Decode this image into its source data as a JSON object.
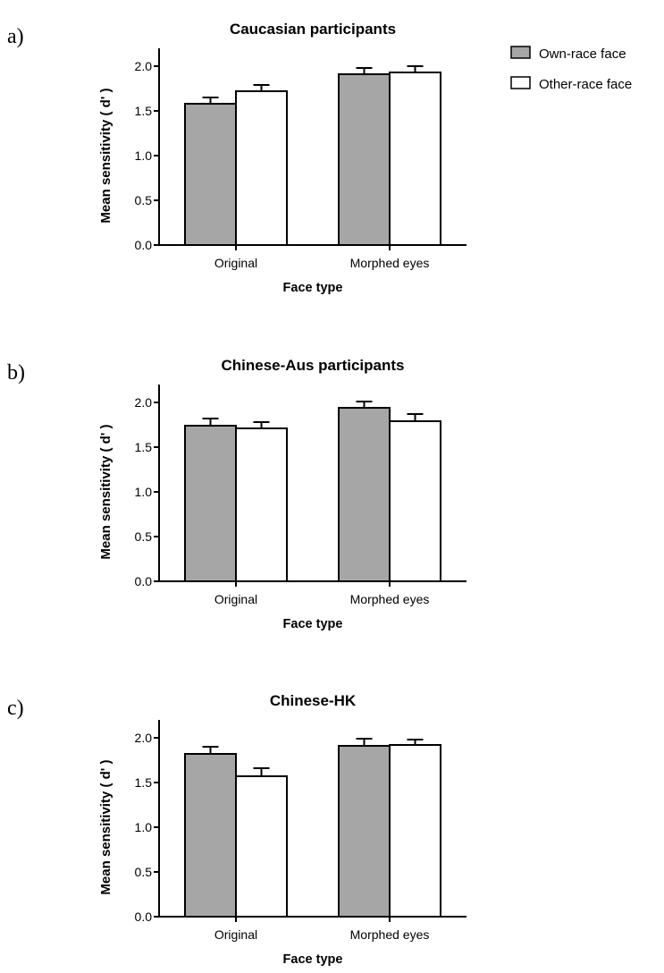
{
  "legend": {
    "position": "top-right",
    "items": [
      {
        "label": "Own-race face",
        "color": "#a6a6a6"
      },
      {
        "label": "Other-race face",
        "color": "#ffffff"
      }
    ]
  },
  "chart_data": [
    {
      "panel": "a)",
      "type": "bar",
      "title": "Caucasian participants",
      "xlabel": "Face type",
      "ylabel": "Mean sensitivity ( d' )",
      "categories": [
        "Original",
        "Morphed eyes"
      ],
      "ylim": [
        0,
        2.2
      ],
      "yticks": [
        "0.0",
        "0.5",
        "1.0",
        "1.5",
        "2.0"
      ],
      "grid": false,
      "series": [
        {
          "name": "Own-race face",
          "values": [
            1.58,
            1.91
          ],
          "errors": [
            0.07,
            0.07
          ]
        },
        {
          "name": "Other-race face",
          "values": [
            1.72,
            1.93
          ],
          "errors": [
            0.07,
            0.07
          ]
        }
      ]
    },
    {
      "panel": "b)",
      "type": "bar",
      "title": "Chinese-Aus participants",
      "xlabel": "Face type",
      "ylabel": "Mean sensitivity ( d' )",
      "categories": [
        "Original",
        "Morphed eyes"
      ],
      "ylim": [
        0,
        2.2
      ],
      "yticks": [
        "0.0",
        "0.5",
        "1.0",
        "1.5",
        "2.0"
      ],
      "grid": false,
      "series": [
        {
          "name": "Own-race face",
          "values": [
            1.74,
            1.94
          ],
          "errors": [
            0.08,
            0.07
          ]
        },
        {
          "name": "Other-race face",
          "values": [
            1.71,
            1.79
          ],
          "errors": [
            0.07,
            0.08
          ]
        }
      ]
    },
    {
      "panel": "c)",
      "type": "bar",
      "title": "Chinese-HK",
      "xlabel": "Face type",
      "ylabel": "Mean sensitivity ( d' )",
      "categories": [
        "Original",
        "Morphed eyes"
      ],
      "ylim": [
        0,
        2.2
      ],
      "yticks": [
        "0.0",
        "0.5",
        "1.0",
        "1.5",
        "2.0"
      ],
      "grid": false,
      "series": [
        {
          "name": "Own-race face",
          "values": [
            1.82,
            1.91
          ],
          "errors": [
            0.08,
            0.08
          ]
        },
        {
          "name": "Other-race face",
          "values": [
            1.57,
            1.92
          ],
          "errors": [
            0.09,
            0.06
          ]
        }
      ]
    }
  ]
}
